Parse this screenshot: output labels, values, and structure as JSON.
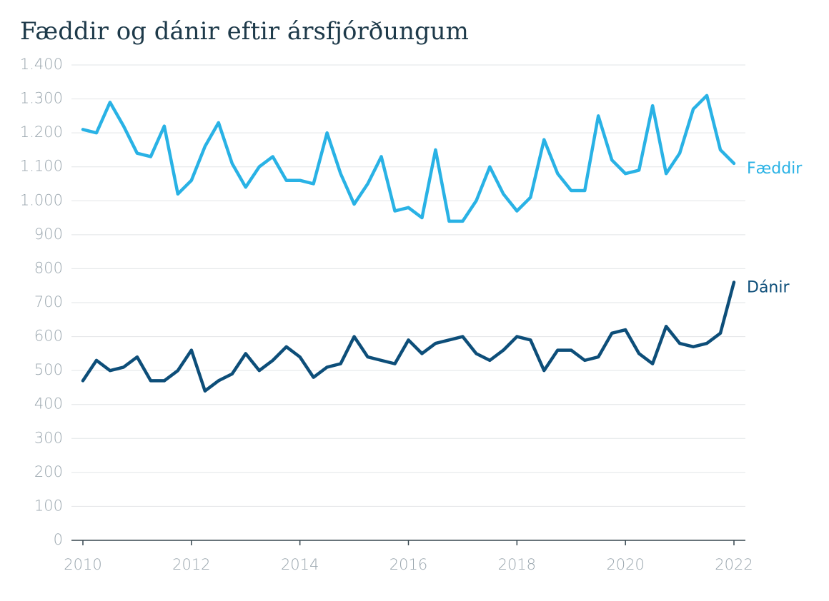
{
  "chart_data": {
    "type": "line",
    "title": "Fæddir og dánir eftir ársfjórðungum",
    "x": [
      2010,
      2010.25,
      2010.5,
      2010.75,
      2011,
      2011.25,
      2011.5,
      2011.75,
      2012,
      2012.25,
      2012.5,
      2012.75,
      2013,
      2013.25,
      2013.5,
      2013.75,
      2014,
      2014.25,
      2014.5,
      2014.75,
      2015,
      2015.25,
      2015.5,
      2015.75,
      2016,
      2016.25,
      2016.5,
      2016.75,
      2017,
      2017.25,
      2017.5,
      2017.75,
      2018,
      2018.25,
      2018.5,
      2018.75,
      2019,
      2019.25,
      2019.5,
      2019.75,
      2020,
      2020.25,
      2020.5,
      2020.75,
      2021,
      2021.25,
      2021.5,
      2021.75,
      2022
    ],
    "series": [
      {
        "name": "Fæddir",
        "color": "#29b2e5",
        "values": [
          1210,
          1200,
          1290,
          1220,
          1140,
          1130,
          1220,
          1020,
          1060,
          1160,
          1230,
          1110,
          1040,
          1100,
          1130,
          1060,
          1060,
          1050,
          1200,
          1080,
          990,
          1050,
          1130,
          970,
          980,
          950,
          1150,
          940,
          940,
          1000,
          1100,
          1020,
          970,
          1010,
          1180,
          1080,
          1030,
          1030,
          1250,
          1120,
          1080,
          1090,
          1280,
          1080,
          1140,
          1270,
          1310,
          1150,
          1110
        ]
      },
      {
        "name": "Dánir",
        "color": "#0d4e79",
        "values": [
          470,
          530,
          500,
          510,
          540,
          470,
          470,
          500,
          560,
          440,
          470,
          490,
          550,
          500,
          530,
          570,
          540,
          480,
          510,
          520,
          600,
          540,
          530,
          520,
          590,
          550,
          580,
          590,
          600,
          550,
          530,
          560,
          600,
          590,
          500,
          560,
          560,
          530,
          540,
          610,
          620,
          550,
          520,
          630,
          580,
          570,
          580,
          610,
          760
        ]
      }
    ],
    "xlim": [
      2010,
      2022
    ],
    "xticks": [
      2010,
      2012,
      2014,
      2016,
      2018,
      2020,
      2022
    ],
    "ylim": [
      0,
      1400
    ],
    "yticks": [
      0,
      100,
      200,
      300,
      400,
      500,
      600,
      700,
      800,
      900,
      {
        "value": 1000,
        "label": "1.000"
      },
      {
        "value": 1100,
        "label": "1.100"
      },
      {
        "value": 1200,
        "label": "1.200"
      },
      {
        "value": 1300,
        "label": "1.300"
      },
      {
        "value": 1400,
        "label": "1.400"
      }
    ],
    "grid": true
  }
}
